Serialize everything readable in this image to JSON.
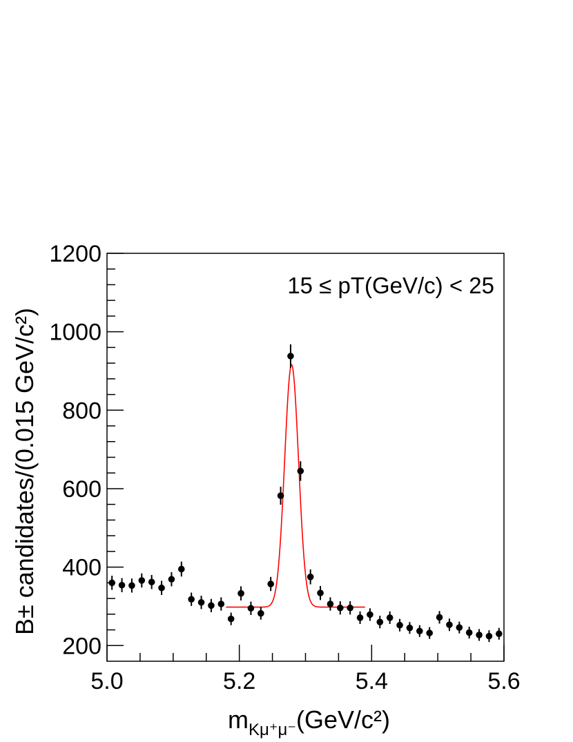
{
  "chart_data": {
    "type": "scatter",
    "xlabel": "m",
    "xlabel_sub": "Kμ⁺μ⁻",
    "xlabel_unit": "(GeV/c²)",
    "ylabel": "B± candidates/(0.015 GeV/c²)",
    "annotation": "15 ≤ pT(GeV/c) < 25",
    "xlim": [
      5.0,
      5.6
    ],
    "ylim": [
      160,
      1200
    ],
    "x_ticks": [
      "5.0",
      "5.2",
      "5.4",
      "5.6"
    ],
    "y_ticks": [
      "200",
      "400",
      "600",
      "800",
      "1000",
      "1200"
    ],
    "grid": false,
    "series": [
      {
        "kind": "data-points-with-errors",
        "color": "#000000",
        "points": [
          {
            "x": 5.0075,
            "y": 360,
            "err": 18
          },
          {
            "x": 5.0225,
            "y": 354,
            "err": 18
          },
          {
            "x": 5.0375,
            "y": 353,
            "err": 18
          },
          {
            "x": 5.0525,
            "y": 366,
            "err": 18
          },
          {
            "x": 5.0675,
            "y": 362,
            "err": 18
          },
          {
            "x": 5.0825,
            "y": 347,
            "err": 18
          },
          {
            "x": 5.0975,
            "y": 369,
            "err": 18
          },
          {
            "x": 5.1125,
            "y": 395,
            "err": 19
          },
          {
            "x": 5.1275,
            "y": 318,
            "err": 17
          },
          {
            "x": 5.1425,
            "y": 310,
            "err": 17
          },
          {
            "x": 5.1575,
            "y": 302,
            "err": 17
          },
          {
            "x": 5.1725,
            "y": 306,
            "err": 17
          },
          {
            "x": 5.1875,
            "y": 268,
            "err": 16
          },
          {
            "x": 5.2025,
            "y": 333,
            "err": 18
          },
          {
            "x": 5.2175,
            "y": 295,
            "err": 17
          },
          {
            "x": 5.2325,
            "y": 282,
            "err": 16
          },
          {
            "x": 5.2475,
            "y": 357,
            "err": 18
          },
          {
            "x": 5.2625,
            "y": 582,
            "err": 23
          },
          {
            "x": 5.2775,
            "y": 938,
            "err": 30
          },
          {
            "x": 5.2925,
            "y": 645,
            "err": 25
          },
          {
            "x": 5.3075,
            "y": 375,
            "err": 19
          },
          {
            "x": 5.3225,
            "y": 334,
            "err": 18
          },
          {
            "x": 5.3375,
            "y": 306,
            "err": 17
          },
          {
            "x": 5.3525,
            "y": 296,
            "err": 17
          },
          {
            "x": 5.3675,
            "y": 296,
            "err": 17
          },
          {
            "x": 5.3825,
            "y": 271,
            "err": 16
          },
          {
            "x": 5.3975,
            "y": 279,
            "err": 16
          },
          {
            "x": 5.4125,
            "y": 260,
            "err": 16
          },
          {
            "x": 5.4275,
            "y": 271,
            "err": 16
          },
          {
            "x": 5.4425,
            "y": 252,
            "err": 16
          },
          {
            "x": 5.4575,
            "y": 245,
            "err": 15
          },
          {
            "x": 5.4725,
            "y": 237,
            "err": 15
          },
          {
            "x": 5.4875,
            "y": 232,
            "err": 15
          },
          {
            "x": 5.5025,
            "y": 272,
            "err": 16
          },
          {
            "x": 5.5175,
            "y": 253,
            "err": 16
          },
          {
            "x": 5.5325,
            "y": 246,
            "err": 15
          },
          {
            "x": 5.5475,
            "y": 233,
            "err": 15
          },
          {
            "x": 5.5625,
            "y": 227,
            "err": 15
          },
          {
            "x": 5.5775,
            "y": 224,
            "err": 15
          },
          {
            "x": 5.5925,
            "y": 230,
            "err": 15
          }
        ]
      },
      {
        "kind": "fit-curve",
        "shape": "gaussian-plus-constant",
        "color": "#ff0000",
        "x_range": [
          5.18,
          5.39
        ],
        "mean": 5.279,
        "sigma": 0.0105,
        "amplitude": 618,
        "background": 298
      }
    ]
  }
}
